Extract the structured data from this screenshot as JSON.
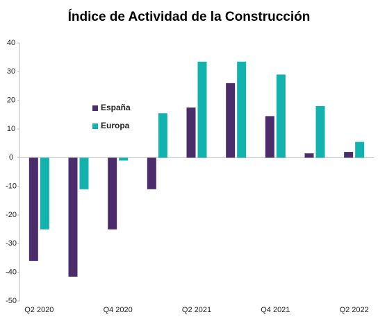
{
  "chart_data": {
    "type": "bar",
    "title": "Índice de Actividad de la Construcción",
    "categories": [
      "Q2 2020",
      null,
      "Q4 2020",
      null,
      "Q2 2021",
      null,
      "Q4 2021",
      null,
      "Q2 2022"
    ],
    "series": [
      {
        "name": "España",
        "color": "#4b2d6b",
        "values": [
          -36,
          -41.5,
          -25,
          -11,
          17.5,
          26,
          14.5,
          1.5,
          2
        ]
      },
      {
        "name": "Europa",
        "color": "#12b2ae",
        "values": [
          -25,
          -11,
          -1,
          15.5,
          33.5,
          33.5,
          29,
          18,
          5.5
        ]
      }
    ],
    "ylim": [
      -50,
      40
    ],
    "yticks": [
      -50,
      -40,
      -30,
      -20,
      -10,
      0,
      10,
      20,
      30,
      40
    ],
    "grid": false
  }
}
